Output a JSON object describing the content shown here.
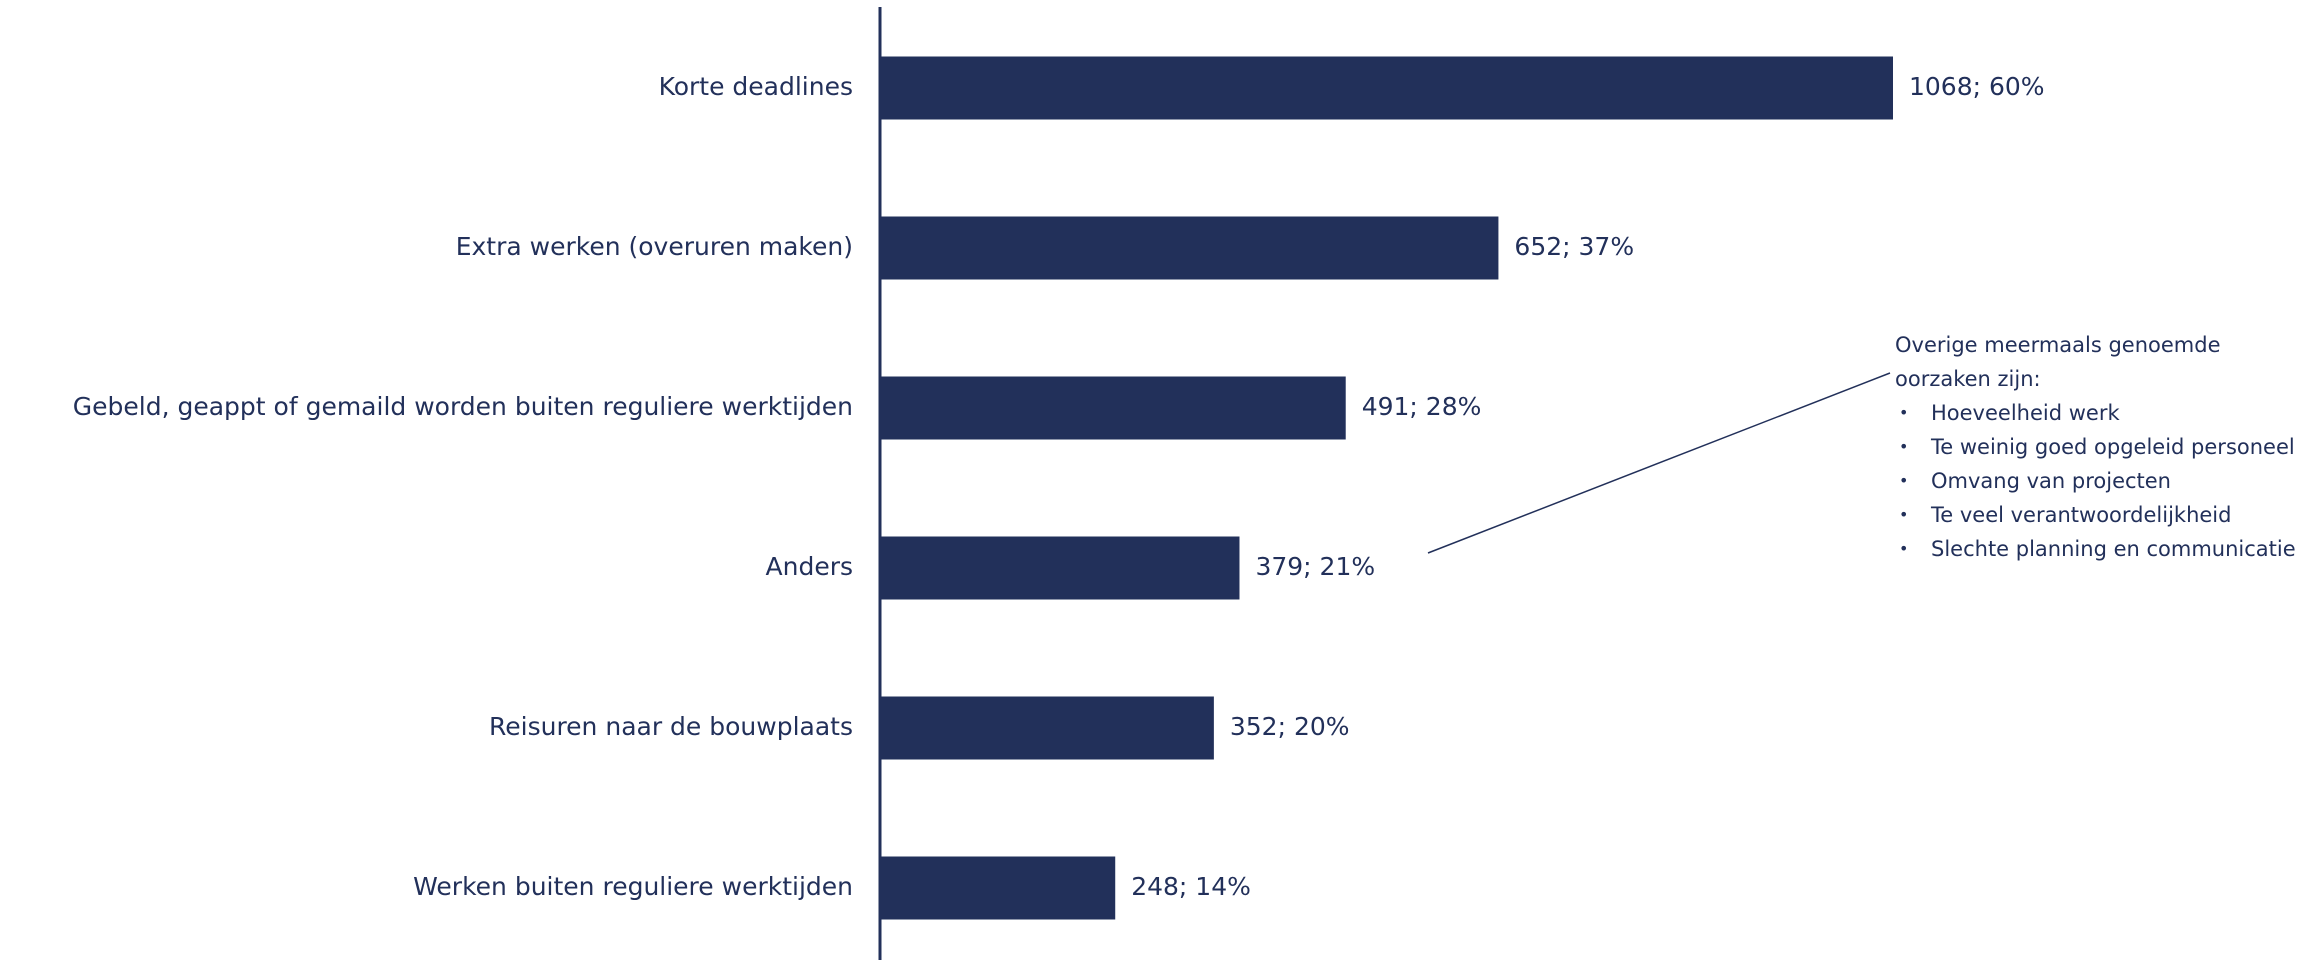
{
  "chart_data": {
    "type": "barh",
    "categories": [
      "Korte deadlines",
      "Extra werken (overuren maken)",
      "Gebeld, geappt of gemaild worden buiten reguliere werktijden",
      "Anders",
      "Reisuren naar de bouwplaats",
      "Werken buiten reguliere werktijden"
    ],
    "values": [
      1068,
      652,
      491,
      379,
      352,
      248
    ],
    "value_labels": [
      "1068; 60%",
      "652; 37%",
      "491; 28%",
      "379; 21%",
      "352; 20%",
      "248; 14%"
    ],
    "color": "#22305a",
    "annotation": {
      "title": "Overige meermaals genoemde oorzaken zijn:",
      "items": [
        "Hoeveelheid werk",
        "Te weinig goed opgeleid personeel",
        "Omvang van projecten",
        "Te veel verantwoordelijkheid",
        "Slechte planning en communicatie"
      ]
    }
  }
}
